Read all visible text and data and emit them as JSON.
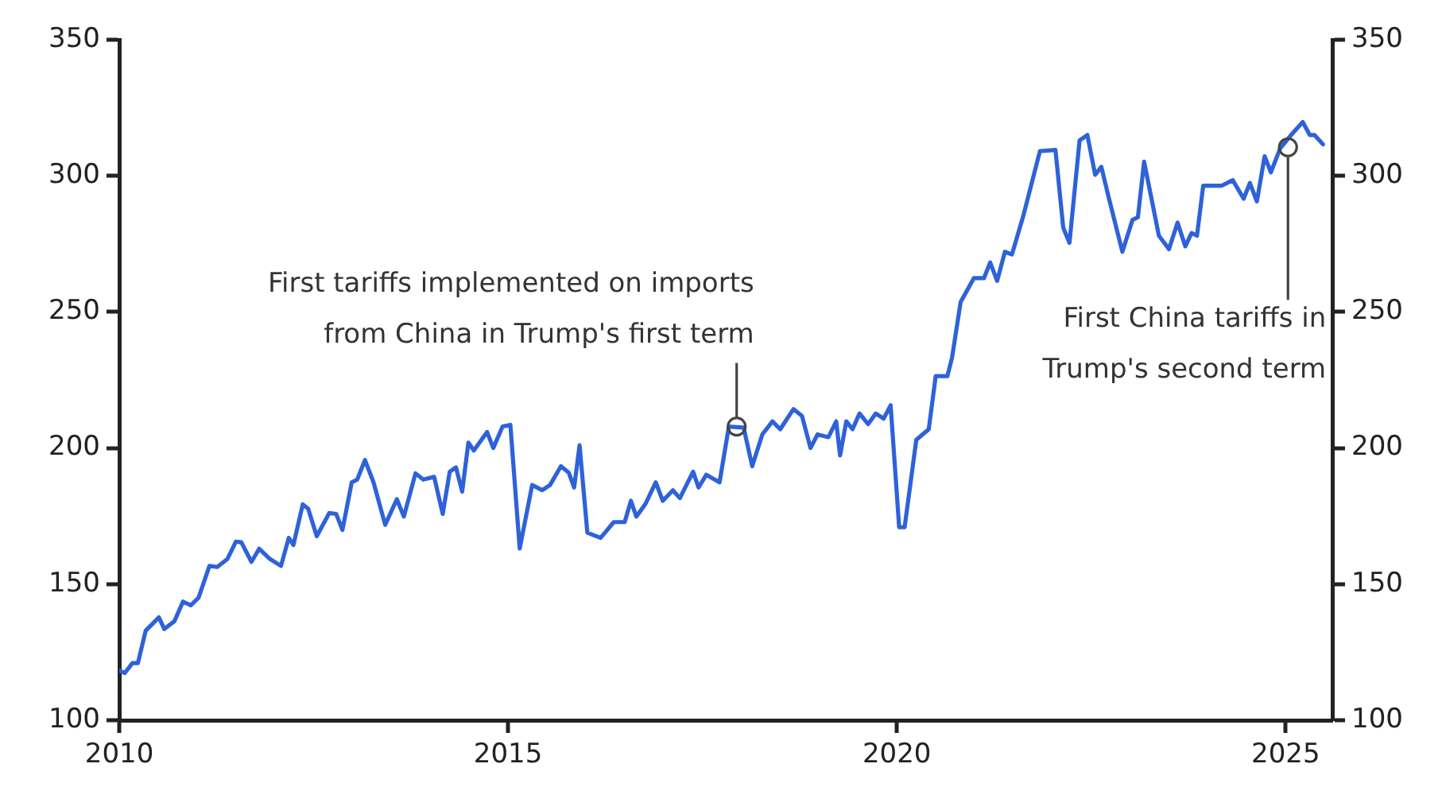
{
  "chart_data": {
    "type": "line",
    "x": [
      2010,
      2010.07,
      2010.17,
      2010.24,
      2010.34,
      2010.51,
      2010.58,
      2010.71,
      2010.82,
      2010.92,
      2011.02,
      2011.16,
      2011.26,
      2011.39,
      2011.5,
      2011.57,
      2011.7,
      2011.8,
      2011.94,
      2012.08,
      2012.18,
      2012.24,
      2012.36,
      2012.43,
      2012.54,
      2012.7,
      2012.79,
      2012.87,
      2012.99,
      2013.06,
      2013.16,
      2013.27,
      2013.42,
      2013.57,
      2013.66,
      2013.81,
      2013.91,
      2014.05,
      2014.16,
      2014.25,
      2014.33,
      2014.41,
      2014.49,
      2014.56,
      2014.73,
      2014.81,
      2014.93,
      2015.03,
      2015.15,
      2015.31,
      2015.44,
      2015.54,
      2015.68,
      2015.78,
      2015.85,
      2015.92,
      2016.02,
      2016.19,
      2016.36,
      2016.5,
      2016.58,
      2016.65,
      2016.77,
      2016.9,
      2016.99,
      2017.12,
      2017.21,
      2017.38,
      2017.45,
      2017.55,
      2017.72,
      2017.84,
      2018.03,
      2018.14,
      2018.27,
      2018.4,
      2018.5,
      2018.67,
      2018.78,
      2018.89,
      2018.98,
      2019.12,
      2019.22,
      2019.27,
      2019.35,
      2019.43,
      2019.52,
      2019.63,
      2019.73,
      2019.83,
      2019.92,
      2020.03,
      2020.1,
      2020.25,
      2020.41,
      2020.5,
      2020.65,
      2020.71,
      2020.82,
      2020.99,
      2021.12,
      2021.2,
      2021.29,
      2021.39,
      2021.48,
      2021.63,
      2021.84,
      2022.04,
      2022.14,
      2022.22,
      2022.35,
      2022.45,
      2022.55,
      2022.63,
      2022.72,
      2022.9,
      2023.03,
      2023.1,
      2023.18,
      2023.37,
      2023.5,
      2023.61,
      2023.71,
      2023.79,
      2023.86,
      2023.94,
      2024.18,
      2024.32,
      2024.46,
      2024.54,
      2024.63,
      2024.73,
      2024.81,
      2024.93,
      2025.07,
      2025.22,
      2025.31,
      2025.37,
      2025.48
    ],
    "series": [
      {
        "color": "#2e62d9",
        "values": [
          118.3,
          117.3,
          121,
          121,
          132.9,
          137.8,
          133.5,
          136.4,
          143.6,
          142.2,
          145,
          156.7,
          156.3,
          159.2,
          165.6,
          165.4,
          158.2,
          163,
          159.2,
          156.7,
          167,
          164.4,
          179.3,
          177.7,
          167.6,
          176.1,
          175.8,
          169.9,
          187.4,
          188.4,
          195.6,
          187.4,
          171.8,
          181.2,
          174.8,
          190.7,
          188.4,
          189.4,
          175.8,
          191.3,
          192.9,
          184,
          202,
          199.1,
          205.9,
          200,
          207.9,
          208.5,
          163.1,
          186.4,
          184.5,
          186.4,
          193.3,
          191,
          185.5,
          201,
          168.9,
          167,
          172.8,
          172.8,
          180.6,
          174.8,
          179.6,
          187.4,
          180.6,
          184.5,
          181.6,
          191.3,
          185.5,
          190.2,
          187.4,
          207.9,
          207.5,
          193.3,
          205,
          209.8,
          206.9,
          214.3,
          211.8,
          200,
          205,
          204,
          209.8,
          197.3,
          209.8,
          206.9,
          212.7,
          208.8,
          212.7,
          210.8,
          215.7,
          170.9,
          170.9,
          203,
          206.9,
          226.4,
          226.4,
          233.2,
          253.6,
          262.4,
          262.4,
          268.2,
          261.4,
          272.1,
          271.1,
          285.7,
          309.1,
          309.5,
          280.9,
          275.4,
          313,
          315,
          300.4,
          303.3,
          292.6,
          272.1,
          283.8,
          284.8,
          305.2,
          278,
          273.1,
          282.8,
          274.1,
          279,
          278,
          296.4,
          296.4,
          298.4,
          291.6,
          297.4,
          290.6,
          307.2,
          301.3,
          310.1,
          315,
          319.8,
          315,
          315,
          311.6
        ]
      }
    ],
    "xlim": [
      2010,
      2025.6
    ],
    "xticks": [
      2010,
      2015,
      2020,
      2025
    ],
    "ylim": [
      100,
      350
    ],
    "yticks": [
      100,
      150,
      200,
      250,
      300,
      350
    ],
    "y2lim": [
      100,
      350
    ],
    "y2ticks": [
      100,
      150,
      200,
      250,
      300,
      350
    ],
    "annotations": [
      {
        "text": "First tariffs implemented on imports\nfrom China in Trump's first term",
        "x": 2017.94,
        "y": 207.9
      },
      {
        "text": "First China tariffs in\nTrump's second term",
        "x": 2025.03,
        "y": 310.5
      }
    ],
    "grid": false,
    "legend": false,
    "marker": "none",
    "line_style": "solid"
  }
}
